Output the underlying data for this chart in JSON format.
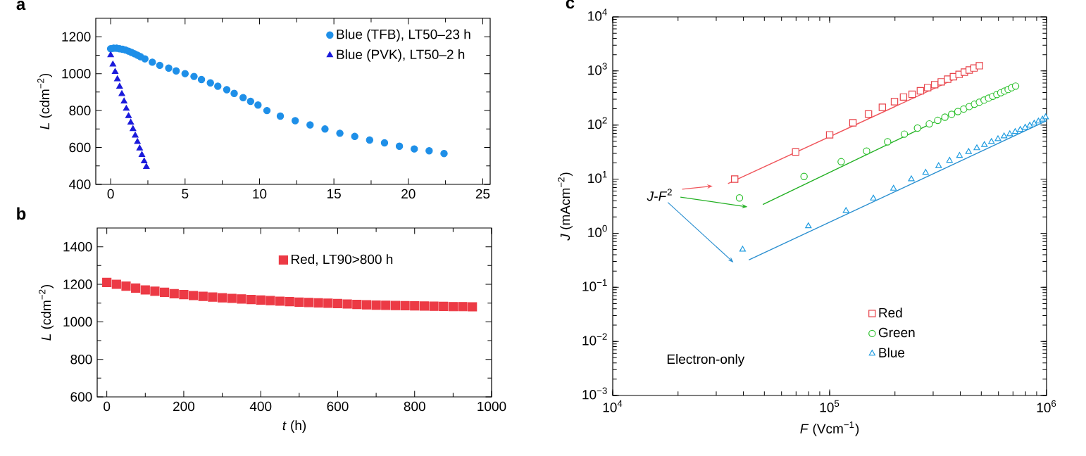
{
  "chart_data": [
    {
      "type": "scatter",
      "title": "a",
      "ylabel": "*L* (cdm$^{−2}$)",
      "xlim": [
        -1,
        25.5
      ],
      "ylim": [
        400,
        1300
      ],
      "xticks": [
        0,
        5,
        10,
        15,
        20,
        25
      ],
      "yticks": [
        400,
        600,
        800,
        1000,
        1200
      ],
      "legend": "top right",
      "series": [
        {
          "name": "Blue (TFB), LT50–23 h",
          "color": "#1e8fe8",
          "marker": "circle",
          "x": [
            0,
            0.2,
            0.4,
            0.6,
            0.8,
            1.0,
            1.2,
            1.4,
            1.6,
            1.8,
            2.0,
            2.3,
            2.8,
            3.3,
            3.9,
            4.4,
            5.0,
            5.6,
            6.1,
            6.7,
            7.2,
            7.8,
            8.3,
            8.9,
            9.4,
            9.9,
            10.5,
            11.4,
            12.4,
            13.4,
            14.4,
            15.4,
            16.4,
            17.4,
            18.4,
            19.4,
            20.4,
            21.4,
            22.4
          ],
          "values": [
            1135,
            1138,
            1138,
            1135,
            1132,
            1128,
            1122,
            1115,
            1108,
            1100,
            1092,
            1080,
            1062,
            1045,
            1030,
            1015,
            1000,
            985,
            968,
            950,
            932,
            913,
            893,
            870,
            850,
            830,
            800,
            770,
            745,
            722,
            700,
            677,
            660,
            640,
            625,
            607,
            592,
            582,
            567
          ]
        },
        {
          "name": "Blue (PVK), LT50–2 h",
          "color": "#1a1adb",
          "marker": "triangle",
          "x": [
            0,
            0.15,
            0.3,
            0.45,
            0.6,
            0.75,
            0.9,
            1.05,
            1.2,
            1.35,
            1.5,
            1.65,
            1.8,
            1.95,
            2.1,
            2.25,
            2.4
          ],
          "values": [
            1100,
            1050,
            1010,
            970,
            930,
            890,
            850,
            810,
            770,
            735,
            700,
            665,
            630,
            595,
            560,
            525,
            495
          ]
        }
      ]
    },
    {
      "type": "scatter",
      "title": "b",
      "xlabel": "*t* (h)",
      "ylabel": "*L* (cdm$^{−2}$)",
      "xlim": [
        -25,
        1000
      ],
      "ylim": [
        600,
        1500
      ],
      "xticks": [
        0,
        200,
        400,
        600,
        800,
        1000
      ],
      "yticks": [
        600,
        800,
        1000,
        1200,
        1400
      ],
      "legend": "top",
      "series": [
        {
          "name": "Red, LT90>800 h",
          "color": "#ec3a45",
          "marker": "square",
          "x": [
            0,
            25,
            50,
            75,
            100,
            125,
            150,
            175,
            200,
            225,
            250,
            275,
            300,
            325,
            350,
            375,
            400,
            425,
            450,
            475,
            500,
            525,
            550,
            575,
            600,
            625,
            650,
            675,
            700,
            725,
            750,
            775,
            800,
            825,
            850,
            875,
            900,
            925,
            950
          ],
          "values": [
            1210,
            1200,
            1190,
            1180,
            1170,
            1163,
            1157,
            1150,
            1145,
            1140,
            1136,
            1132,
            1128,
            1125,
            1122,
            1119,
            1116,
            1113,
            1110,
            1108,
            1105,
            1103,
            1101,
            1099,
            1097,
            1095,
            1093,
            1091,
            1089,
            1088,
            1087,
            1086,
            1085,
            1084,
            1083,
            1082,
            1081,
            1081,
            1080
          ]
        }
      ]
    },
    {
      "type": "scatter",
      "title": "c",
      "xlabel": "*F* (Vcm$^{−1}$)",
      "ylabel": "*J* (mAcm$^{−2}$)",
      "log": "xy",
      "xlim": [
        10000,
        1000000
      ],
      "ylim": [
        0.001,
        10000
      ],
      "legend": "bottom right",
      "xticks": [
        {
          "value": 10000,
          "label": "10$^{4}$"
        },
        {
          "value": 100000,
          "label": "10$^{5}$"
        },
        {
          "value": 1000000,
          "label": "10$^{6}$"
        }
      ],
      "yticks": [
        {
          "value": 0.001,
          "label": "10$^{−3}$"
        },
        {
          "value": 0.01,
          "label": "10$^{−2}$"
        },
        {
          "value": 0.1,
          "label": "10$^{−1}$"
        },
        {
          "value": 1,
          "label": "10$^{0}$"
        },
        {
          "value": 10,
          "label": "10$^{1}$"
        },
        {
          "value": 100,
          "label": "10$^{2}$"
        },
        {
          "value": 1000,
          "label": "10$^{3}$"
        },
        {
          "value": 10000,
          "label": "10$^{4}$"
        }
      ],
      "annotations": [
        "*J*-*F*$^{2}$",
        "Electron-only"
      ],
      "series": [
        {
          "name": "Red",
          "color": "#e8434a",
          "marker": "square",
          "x": [
            36500,
            69700,
            100000,
            128000,
            151000,
            175000,
            199000,
            219000,
            240000,
            262000,
            283000,
            305000,
            327000,
            350000,
            372000,
            395000,
            418000,
            440000,
            463000,
            490000
          ],
          "values": [
            10,
            31.8,
            66,
            110,
            160,
            213,
            270,
            330,
            371,
            431,
            491,
            558,
            629,
            705,
            783,
            866,
            953,
            1040,
            1134,
            1250
          ]
        },
        {
          "name": "Green",
          "color": "#2ec12e",
          "marker": "circle",
          "x": [
            38400,
            76200,
            113000,
            148000,
            185000,
            221000,
            254000,
            288000,
            315000,
            340000,
            365000,
            390000,
            415000,
            440000,
            465000,
            490000,
            515000,
            540000,
            565000,
            590000,
            615000,
            640000,
            665000,
            690000,
            720000
          ],
          "values": [
            4.5,
            11.2,
            21,
            33,
            49,
            68,
            88,
            105,
            122,
            140,
            158,
            178,
            198,
            220,
            243,
            265,
            290,
            315,
            340,
            368,
            395,
            425,
            455,
            490,
            525
          ]
        },
        {
          "name": "Blue",
          "color": "#1e9be0",
          "marker": "triangle",
          "x": [
            39700,
            79800,
            119000,
            159000,
            197000,
            238000,
            277000,
            318000,
            357000,
            397000,
            437000,
            477000,
            517000,
            557000,
            597000,
            637000,
            677000,
            717000,
            757000,
            797000,
            837000,
            877000,
            917000,
            957000,
            990000
          ],
          "values": [
            0.5,
            1.35,
            2.6,
            4.4,
            6.7,
            10,
            13.2,
            17.5,
            22,
            27,
            32,
            37.5,
            43,
            49,
            55,
            62,
            68,
            75,
            82,
            90,
            98,
            107,
            117,
            127,
            140
          ]
        },
        {
          "type": "line",
          "color": "#f0565c",
          "x": [
            34000,
            490000
          ],
          "values": [
            8.3,
            1150
          ]
        },
        {
          "type": "line",
          "color": "#22b022",
          "x": [
            49200,
            706000
          ],
          "values": [
            3.4,
            575
          ]
        },
        {
          "type": "line",
          "color": "#2a8fd0",
          "x": [
            42400,
            1000000
          ],
          "values": [
            0.32,
            120
          ]
        }
      ]
    }
  ]
}
